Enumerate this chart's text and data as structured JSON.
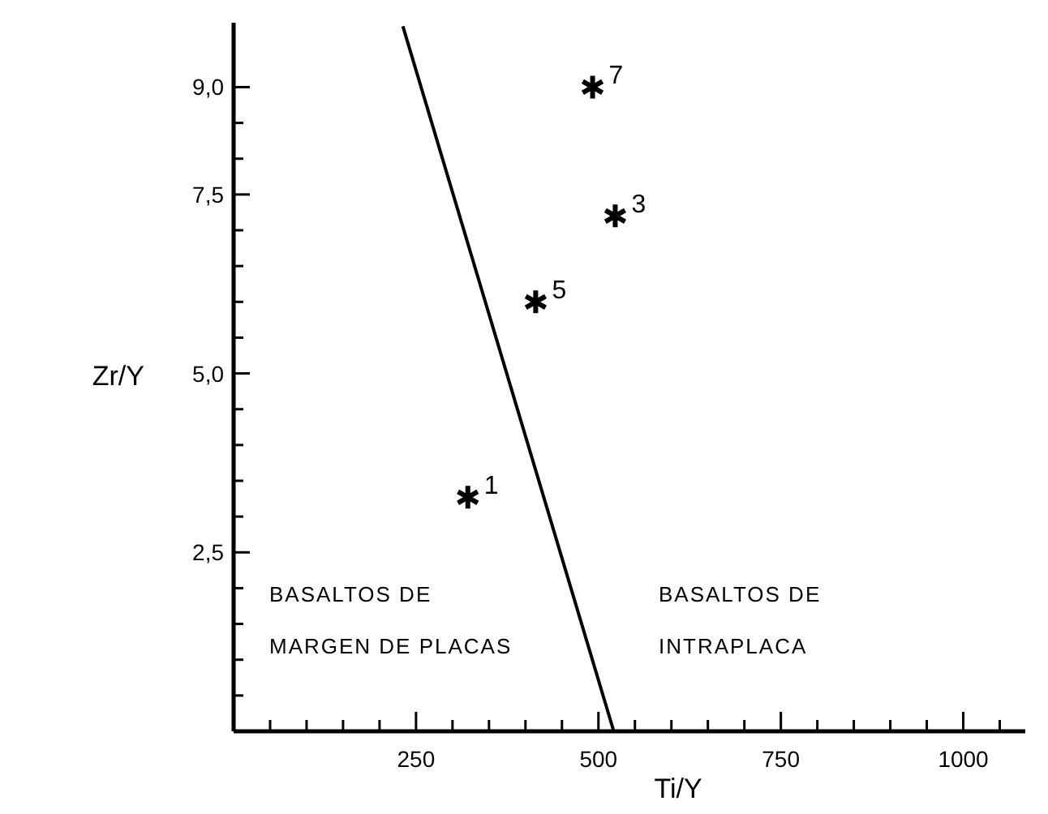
{
  "chart_data": {
    "type": "scatter",
    "xlabel": "Ti/Y",
    "ylabel": "Zr/Y",
    "x": [
      321,
      414,
      523,
      492
    ],
    "xlim": [
      0,
      1085
    ],
    "ylim": [
      0,
      9.9
    ],
    "grid": false,
    "xticks": [
      {
        "value": 50,
        "label": null
      },
      {
        "value": 100,
        "label": null
      },
      {
        "value": 150,
        "label": null
      },
      {
        "value": 200,
        "label": null
      },
      250,
      {
        "value": 300,
        "label": null
      },
      {
        "value": 350,
        "label": null
      },
      {
        "value": 400,
        "label": null
      },
      {
        "value": 450,
        "label": null
      },
      500,
      {
        "value": 550,
        "label": null
      },
      {
        "value": 600,
        "label": null
      },
      {
        "value": 650,
        "label": null
      },
      {
        "value": 700,
        "label": null
      },
      750,
      {
        "value": 800,
        "label": null
      },
      {
        "value": 850,
        "label": null
      },
      {
        "value": 900,
        "label": null
      },
      {
        "value": 950,
        "label": null
      },
      1000,
      {
        "value": 1050,
        "label": null
      }
    ],
    "yticks": [
      {
        "value": 0.5,
        "label": null
      },
      {
        "value": 1,
        "label": null
      },
      {
        "value": 1.5,
        "label": null
      },
      {
        "value": 2,
        "label": null
      },
      {
        "value": 2.5,
        "label": "2,5"
      },
      {
        "value": 3,
        "label": null
      },
      {
        "value": 3.5,
        "label": null
      },
      {
        "value": 4,
        "label": null
      },
      {
        "value": 4.5,
        "label": null
      },
      {
        "value": 5,
        "label": "5,0"
      },
      {
        "value": 5.5,
        "label": null
      },
      {
        "value": 6,
        "label": null
      },
      {
        "value": 6.5,
        "label": null
      },
      {
        "value": 7,
        "label": null
      },
      {
        "value": 7.5,
        "label": "7,5"
      },
      {
        "value": 8,
        "label": null
      },
      {
        "value": 8.5,
        "label": null
      },
      {
        "value": 9,
        "label": "9,0"
      }
    ],
    "series": [
      {
        "marker": "cross",
        "color": "#000000",
        "values": [
          3.27,
          6.0,
          7.2,
          9.0
        ]
      },
      {
        "type": "line",
        "color": "#000000",
        "x": [
          232,
          521
        ],
        "values": [
          9.85,
          0
        ]
      }
    ],
    "annotations": [
      {
        "text": "1",
        "x": 321,
        "y": 3.27
      },
      {
        "text": "5",
        "x": 414,
        "y": 6.0
      },
      {
        "text": "3",
        "x": 523,
        "y": 7.2
      },
      {
        "text": "7",
        "x": 492,
        "y": 9.0
      },
      "BASALTOS DE\nMARGEN DE PLACAS",
      "BASALTOS DE\nINTRAPLACA"
    ]
  }
}
